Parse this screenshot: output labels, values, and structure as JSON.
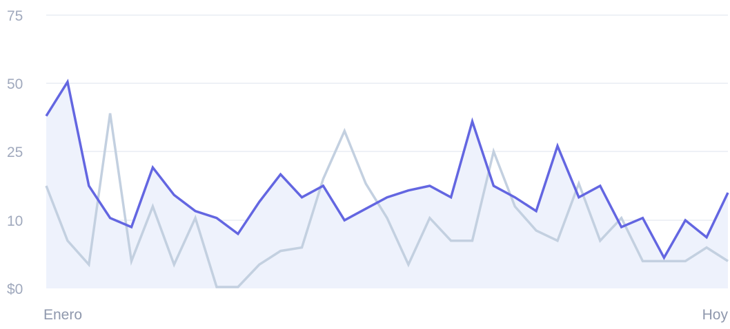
{
  "chart_data": {
    "type": "line",
    "y_ticks": [
      {
        "value": 0,
        "label": "$0"
      },
      {
        "value": 10,
        "label": "10"
      },
      {
        "value": 25,
        "label": "25"
      },
      {
        "value": 50,
        "label": "50"
      },
      {
        "value": 75,
        "label": "75"
      }
    ],
    "x_start_label": "Enero",
    "x_end_label": "Hoy",
    "grid": true,
    "series": [
      {
        "color": "#6366e1",
        "fill": "#eef2fc",
        "values": [
          38,
          50.5,
          17.5,
          10.5,
          9,
          21.5,
          15.5,
          12,
          10.5,
          8,
          14,
          20,
          15,
          17.5,
          10,
          12.5,
          15,
          16.5,
          17.5,
          15,
          36,
          17.5,
          15,
          12,
          27,
          15,
          17.5,
          9,
          10.5,
          4.5,
          10,
          7.5,
          16
        ]
      },
      {
        "color": "#c3d0e0",
        "values": [
          17.5,
          7,
          3.5,
          39,
          4,
          13,
          3.5,
          10.5,
          0.2,
          0.2,
          3.5,
          5.5,
          6,
          19,
          32.5,
          18,
          10.5,
          3.5,
          10.5,
          7,
          7,
          25,
          13,
          8.5,
          7,
          18,
          7,
          10.5,
          4,
          4,
          4,
          6,
          4
        ]
      }
    ]
  }
}
